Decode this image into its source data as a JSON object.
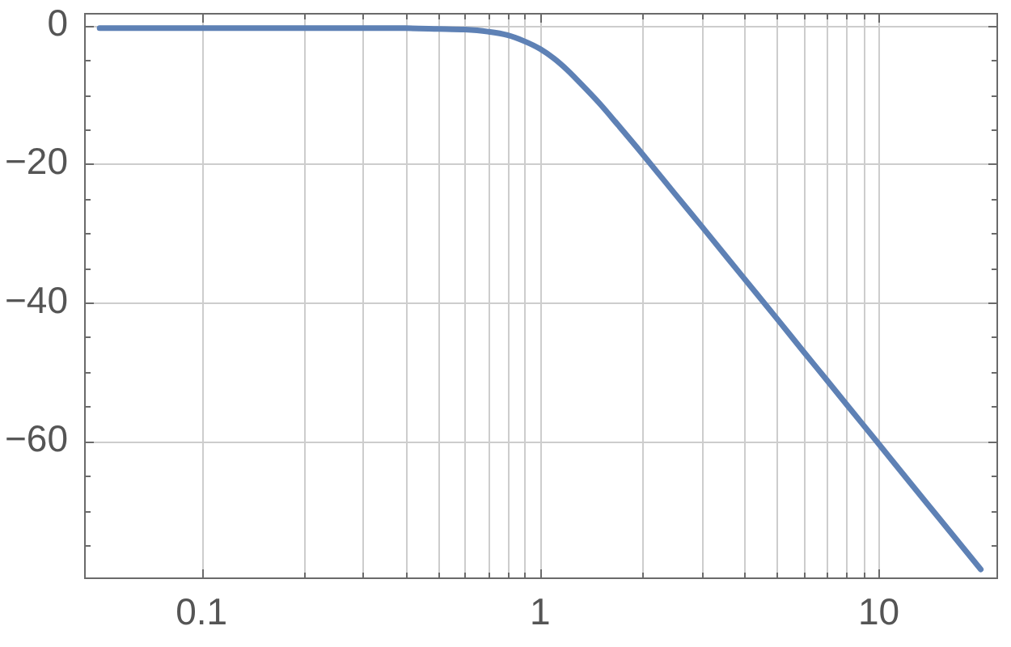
{
  "chart_data": {
    "type": "line",
    "log": "x",
    "x": [
      0.05,
      0.1,
      0.2,
      0.3,
      0.4,
      0.5,
      0.6,
      0.7,
      0.8,
      0.9,
      1,
      1.1,
      1.2,
      1.3,
      1.5,
      1.7,
      2,
      2.5,
      3,
      4,
      5,
      6,
      7,
      8,
      10,
      12,
      15,
      20
    ],
    "series": [
      {
        "color": "#5e81b5",
        "values": [
          -0.4,
          -0.4,
          -0.4,
          -0.4,
          -0.4,
          -0.5,
          -0.6,
          -0.9,
          -1.4,
          -2.3,
          -3.4,
          -4.8,
          -6.4,
          -8.1,
          -11.3,
          -14.4,
          -18.5,
          -24.3,
          -29.0,
          -36.5,
          -42.3,
          -47.1,
          -51.1,
          -54.6,
          -60.4,
          -65.2,
          -71.0,
          -78.5
        ]
      }
    ],
    "xlim": [
      0.045,
      22.5
    ],
    "xticks": [
      0.1,
      {
        "value": 0.2,
        "label": null
      },
      {
        "value": 0.3,
        "label": null
      },
      {
        "value": 0.4,
        "label": null
      },
      {
        "value": 0.5,
        "label": null
      },
      {
        "value": 0.6,
        "label": null
      },
      {
        "value": 0.7,
        "label": null
      },
      {
        "value": 0.8,
        "label": null
      },
      {
        "value": 0.9,
        "label": null
      },
      1,
      {
        "value": 2,
        "label": null
      },
      {
        "value": 3,
        "label": null
      },
      {
        "value": 4,
        "label": null
      },
      {
        "value": 5,
        "label": null
      },
      {
        "value": 6,
        "label": null
      },
      {
        "value": 7,
        "label": null
      },
      {
        "value": 8,
        "label": null
      },
      {
        "value": 9,
        "label": null
      },
      10
    ],
    "ylim": [
      -79.9,
      1.8
    ],
    "yticks": [
      0,
      {
        "value": -5,
        "label": null
      },
      {
        "value": -10,
        "label": null
      },
      {
        "value": -15,
        "label": null
      },
      {
        "value": -20,
        "label": "−20"
      },
      {
        "value": -25,
        "label": null
      },
      {
        "value": -30,
        "label": null
      },
      {
        "value": -35,
        "label": null
      },
      {
        "value": -40,
        "label": "−40"
      },
      {
        "value": -45,
        "label": null
      },
      {
        "value": -50,
        "label": null
      },
      {
        "value": -55,
        "label": null
      },
      {
        "value": -60,
        "label": "−60"
      },
      {
        "value": -65,
        "label": null
      },
      {
        "value": -70,
        "label": null
      },
      {
        "value": -75,
        "label": null
      }
    ],
    "grid": true
  }
}
